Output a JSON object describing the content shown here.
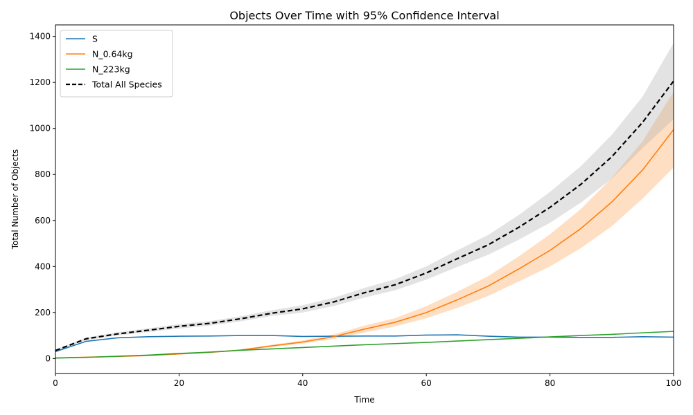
{
  "chart_data": {
    "type": "line",
    "title": "Objects Over Time with 95% Confidence Interval",
    "xlabel": "Time",
    "ylabel": "Total Number of Objects",
    "xlim": [
      0,
      100
    ],
    "ylim": [
      -65,
      1450
    ],
    "x_ticks": [
      0,
      20,
      40,
      60,
      80,
      100
    ],
    "y_ticks": [
      0,
      200,
      400,
      600,
      800,
      1000,
      1200,
      1400
    ],
    "grid": false,
    "legend_position": "top-left",
    "x": [
      0,
      5,
      10,
      15,
      20,
      25,
      30,
      35,
      40,
      45,
      50,
      55,
      60,
      65,
      70,
      75,
      80,
      85,
      90,
      95,
      100
    ],
    "series": [
      {
        "name": "S",
        "color": "#1f77b4",
        "style": "solid",
        "values": [
          30,
          75,
          90,
          95,
          97,
          98,
          100,
          100,
          96,
          97,
          98,
          98,
          102,
          103,
          97,
          93,
          93,
          92,
          92,
          95,
          93
        ]
      },
      {
        "name": "N_0.64kg",
        "color": "#ff7f0e",
        "style": "solid",
        "values": [
          3,
          6,
          9,
          13,
          20,
          27,
          37,
          55,
          72,
          95,
          128,
          158,
          200,
          255,
          315,
          390,
          470,
          565,
          680,
          820,
          995
        ],
        "ci_lower": [
          3,
          5,
          8,
          12,
          18,
          25,
          34,
          50,
          65,
          85,
          113,
          140,
          175,
          220,
          272,
          335,
          400,
          480,
          575,
          695,
          830
        ],
        "ci_upper": [
          3,
          7,
          10,
          14,
          22,
          29,
          40,
          60,
          79,
          105,
          143,
          176,
          228,
          290,
          358,
          445,
          540,
          650,
          785,
          945,
          1160
        ]
      },
      {
        "name": "N_223kg",
        "color": "#2ca02c",
        "style": "solid",
        "values": [
          2,
          5,
          10,
          15,
          22,
          28,
          36,
          42,
          48,
          54,
          60,
          65,
          70,
          76,
          82,
          88,
          94,
          100,
          105,
          112,
          118
        ]
      },
      {
        "name": "Total All Species",
        "color": "#000000",
        "style": "dashed",
        "values": [
          35,
          86,
          107,
          123,
          140,
          153,
          173,
          197,
          216,
          246,
          286,
          321,
          372,
          434,
          494,
          571,
          657,
          757,
          877,
          1027,
          1206
        ],
        "ci_lower": [
          32,
          80,
          100,
          115,
          130,
          143,
          162,
          185,
          200,
          228,
          265,
          297,
          343,
          398,
          451,
          517,
          590,
          678,
          782,
          915,
          1040
        ],
        "ci_upper": [
          38,
          92,
          114,
          131,
          150,
          163,
          184,
          210,
          232,
          264,
          307,
          345,
          401,
          470,
          537,
          625,
          724,
          836,
          972,
          1139,
          1372
        ]
      }
    ]
  }
}
